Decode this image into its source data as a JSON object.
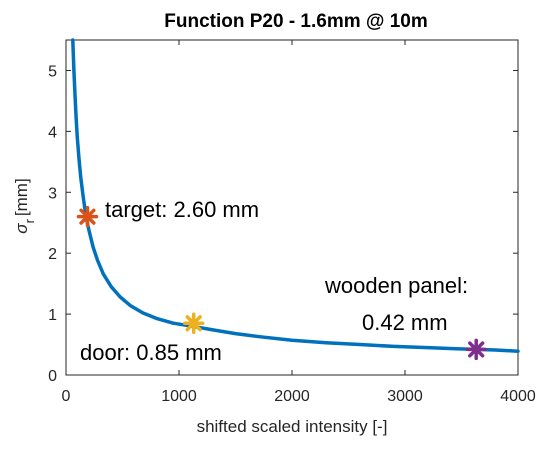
{
  "chart_data": {
    "type": "line",
    "title": "Function P20 - 1.6mm @ 10m",
    "xlabel": "shifted scaled intensity [-]",
    "ylabel": "σ",
    "ylabel_subscript": "r",
    "ylabel_unit": "[mm]",
    "xlim": [
      0,
      4000
    ],
    "ylim": [
      0,
      5.5
    ],
    "xticks": [
      0,
      1000,
      2000,
      3000,
      4000
    ],
    "xtick_labels": [
      "0",
      "1000",
      "2000",
      "3000",
      "4000"
    ],
    "yticks": [
      0,
      1,
      2,
      3,
      4,
      5
    ],
    "ytick_labels": [
      "0",
      "1",
      "2",
      "3",
      "4",
      "5"
    ],
    "grid": false,
    "series": [
      {
        "color": "#0072bd",
        "x": [
          60,
          70,
          80,
          90,
          100,
          115,
          130,
          150,
          175,
          200,
          240,
          280,
          330,
          400,
          480,
          570,
          680,
          800,
          950,
          1120,
          1300,
          1500,
          1750,
          2000,
          2300,
          2600,
          2900,
          3200,
          3450,
          3630,
          3800,
          4000
        ],
        "y": [
          5.5,
          5.0,
          4.6,
          4.2,
          3.9,
          3.55,
          3.25,
          2.95,
          2.62,
          2.4,
          2.1,
          1.88,
          1.66,
          1.45,
          1.28,
          1.14,
          1.02,
          0.93,
          0.85,
          0.8,
          0.74,
          0.68,
          0.62,
          0.57,
          0.53,
          0.5,
          0.47,
          0.45,
          0.43,
          0.42,
          0.41,
          0.39
        ]
      }
    ],
    "markers": [
      {
        "x": 190,
        "y": 2.6,
        "color": "#d95319",
        "label": "target: 2.60 mm"
      },
      {
        "x": 1130,
        "y": 0.85,
        "color": "#edb120",
        "label": "door: 0.85 mm"
      },
      {
        "x": 3630,
        "y": 0.42,
        "color": "#7e2f8e",
        "label_line1": "wooden panel:",
        "label_line2": "0.42 mm"
      }
    ]
  }
}
